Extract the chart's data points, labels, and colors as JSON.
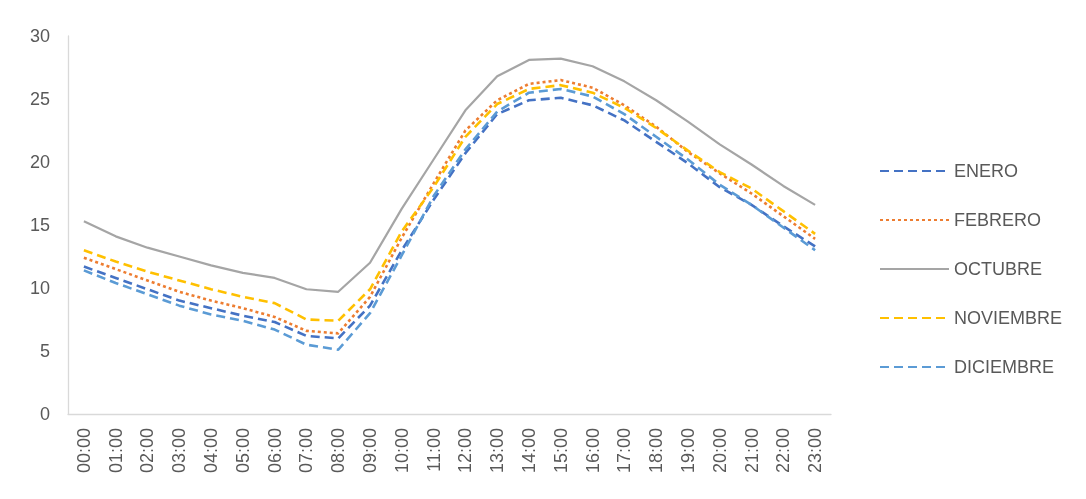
{
  "chart_data": {
    "type": "line",
    "categories": [
      "00:00",
      "01:00",
      "02:00",
      "03:00",
      "04:00",
      "05:00",
      "06:00",
      "07:00",
      "08:00",
      "09:00",
      "10:00",
      "11:00",
      "12:00",
      "13:00",
      "14:00",
      "15:00",
      "16:00",
      "17:00",
      "18:00",
      "19:00",
      "20:00",
      "21:00",
      "22:00",
      "23:00"
    ],
    "series": [
      {
        "name": "ENERO",
        "color": "#4472c4",
        "line_style": "dashed",
        "values": [
          11.7,
          10.8,
          9.9,
          9.0,
          8.4,
          7.8,
          7.3,
          6.2,
          6.0,
          8.6,
          13.0,
          17.0,
          20.7,
          23.8,
          24.9,
          25.1,
          24.5,
          23.3,
          21.6,
          19.9,
          18.0,
          16.6,
          14.9,
          13.3
        ]
      },
      {
        "name": "FEBRERO",
        "color": "#ed7d31",
        "line_style": "dotted",
        "values": [
          12.4,
          11.5,
          10.6,
          9.7,
          9.0,
          8.4,
          7.7,
          6.6,
          6.4,
          9.3,
          14.0,
          18.3,
          22.5,
          24.9,
          26.2,
          26.5,
          25.9,
          24.5,
          22.8,
          20.8,
          19.1,
          17.5,
          15.7,
          13.9
        ]
      },
      {
        "name": "OCTUBRE",
        "color": "#a5a5a5",
        "line_style": "solid",
        "values": [
          15.3,
          14.1,
          13.2,
          12.5,
          11.8,
          11.2,
          10.8,
          9.9,
          9.7,
          12.0,
          16.3,
          20.2,
          24.1,
          26.8,
          28.1,
          28.2,
          27.6,
          26.4,
          24.9,
          23.2,
          21.4,
          19.8,
          18.1,
          16.6
        ]
      },
      {
        "name": "NOVIEMBRE",
        "color": "#ffc000",
        "line_style": "dashed",
        "values": [
          13.0,
          12.1,
          11.3,
          10.6,
          9.9,
          9.3,
          8.8,
          7.5,
          7.4,
          9.9,
          14.5,
          18.0,
          22.0,
          24.6,
          25.8,
          26.1,
          25.5,
          24.3,
          22.7,
          20.9,
          19.2,
          17.9,
          16.1,
          14.3
        ]
      },
      {
        "name": "DICIEMBRE",
        "color": "#5b9bd5",
        "line_style": "dashed",
        "values": [
          11.4,
          10.4,
          9.5,
          8.6,
          7.9,
          7.4,
          6.7,
          5.5,
          5.1,
          8.0,
          12.6,
          17.3,
          21.0,
          24.0,
          25.5,
          25.8,
          25.2,
          23.8,
          22.0,
          20.2,
          18.2,
          16.6,
          14.8,
          13.0
        ]
      }
    ],
    "ylim": [
      0,
      30
    ],
    "yticks": [
      0,
      5,
      10,
      15,
      20,
      25,
      30
    ],
    "grid": false,
    "legend": "right",
    "marker": "none"
  }
}
